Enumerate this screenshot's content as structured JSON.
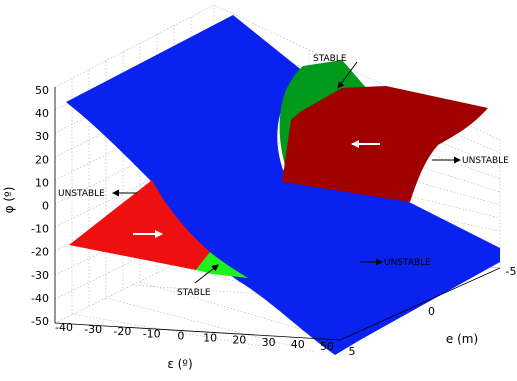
{
  "chart_data": {
    "type": "surface3d",
    "title": "",
    "axes": {
      "epsilon": {
        "label": "ε (º)",
        "ticks": [
          "-40",
          "-30",
          "-20",
          "-10",
          "0",
          "10",
          "20",
          "30",
          "40",
          "50"
        ],
        "range": [
          -45,
          50
        ]
      },
      "e": {
        "label": "e (m)",
        "ticks": [
          "5",
          "0",
          "-5"
        ],
        "range": [
          -6,
          5
        ]
      },
      "phi": {
        "label": "φ (º)",
        "ticks": [
          "50",
          "40",
          "30",
          "20",
          "10",
          "0",
          "-10",
          "-20",
          "-30",
          "-40",
          "-50"
        ],
        "range": [
          -50,
          50
        ]
      }
    },
    "grid": true,
    "regions": [
      {
        "name": "stability-plane",
        "color": "#0a22f0"
      },
      {
        "name": "stable-upper",
        "label": "STABLE",
        "color": "#009a1a"
      },
      {
        "name": "unstable-upper",
        "label": "UNSTABLE",
        "color": "#a00000"
      },
      {
        "name": "stable-lower",
        "label": "STABLE",
        "color": "#1cf21c"
      },
      {
        "name": "unstable-lower",
        "label": "UNSTABLE",
        "color": "#ee1010"
      }
    ],
    "annotations": {
      "stable_top": "STABLE",
      "stable_bottom": "STABLE",
      "unstable_right": "UNSTABLE",
      "unstable_left": "UNSTABLE",
      "unstable_lower_right": "UNSTABLE"
    }
  }
}
